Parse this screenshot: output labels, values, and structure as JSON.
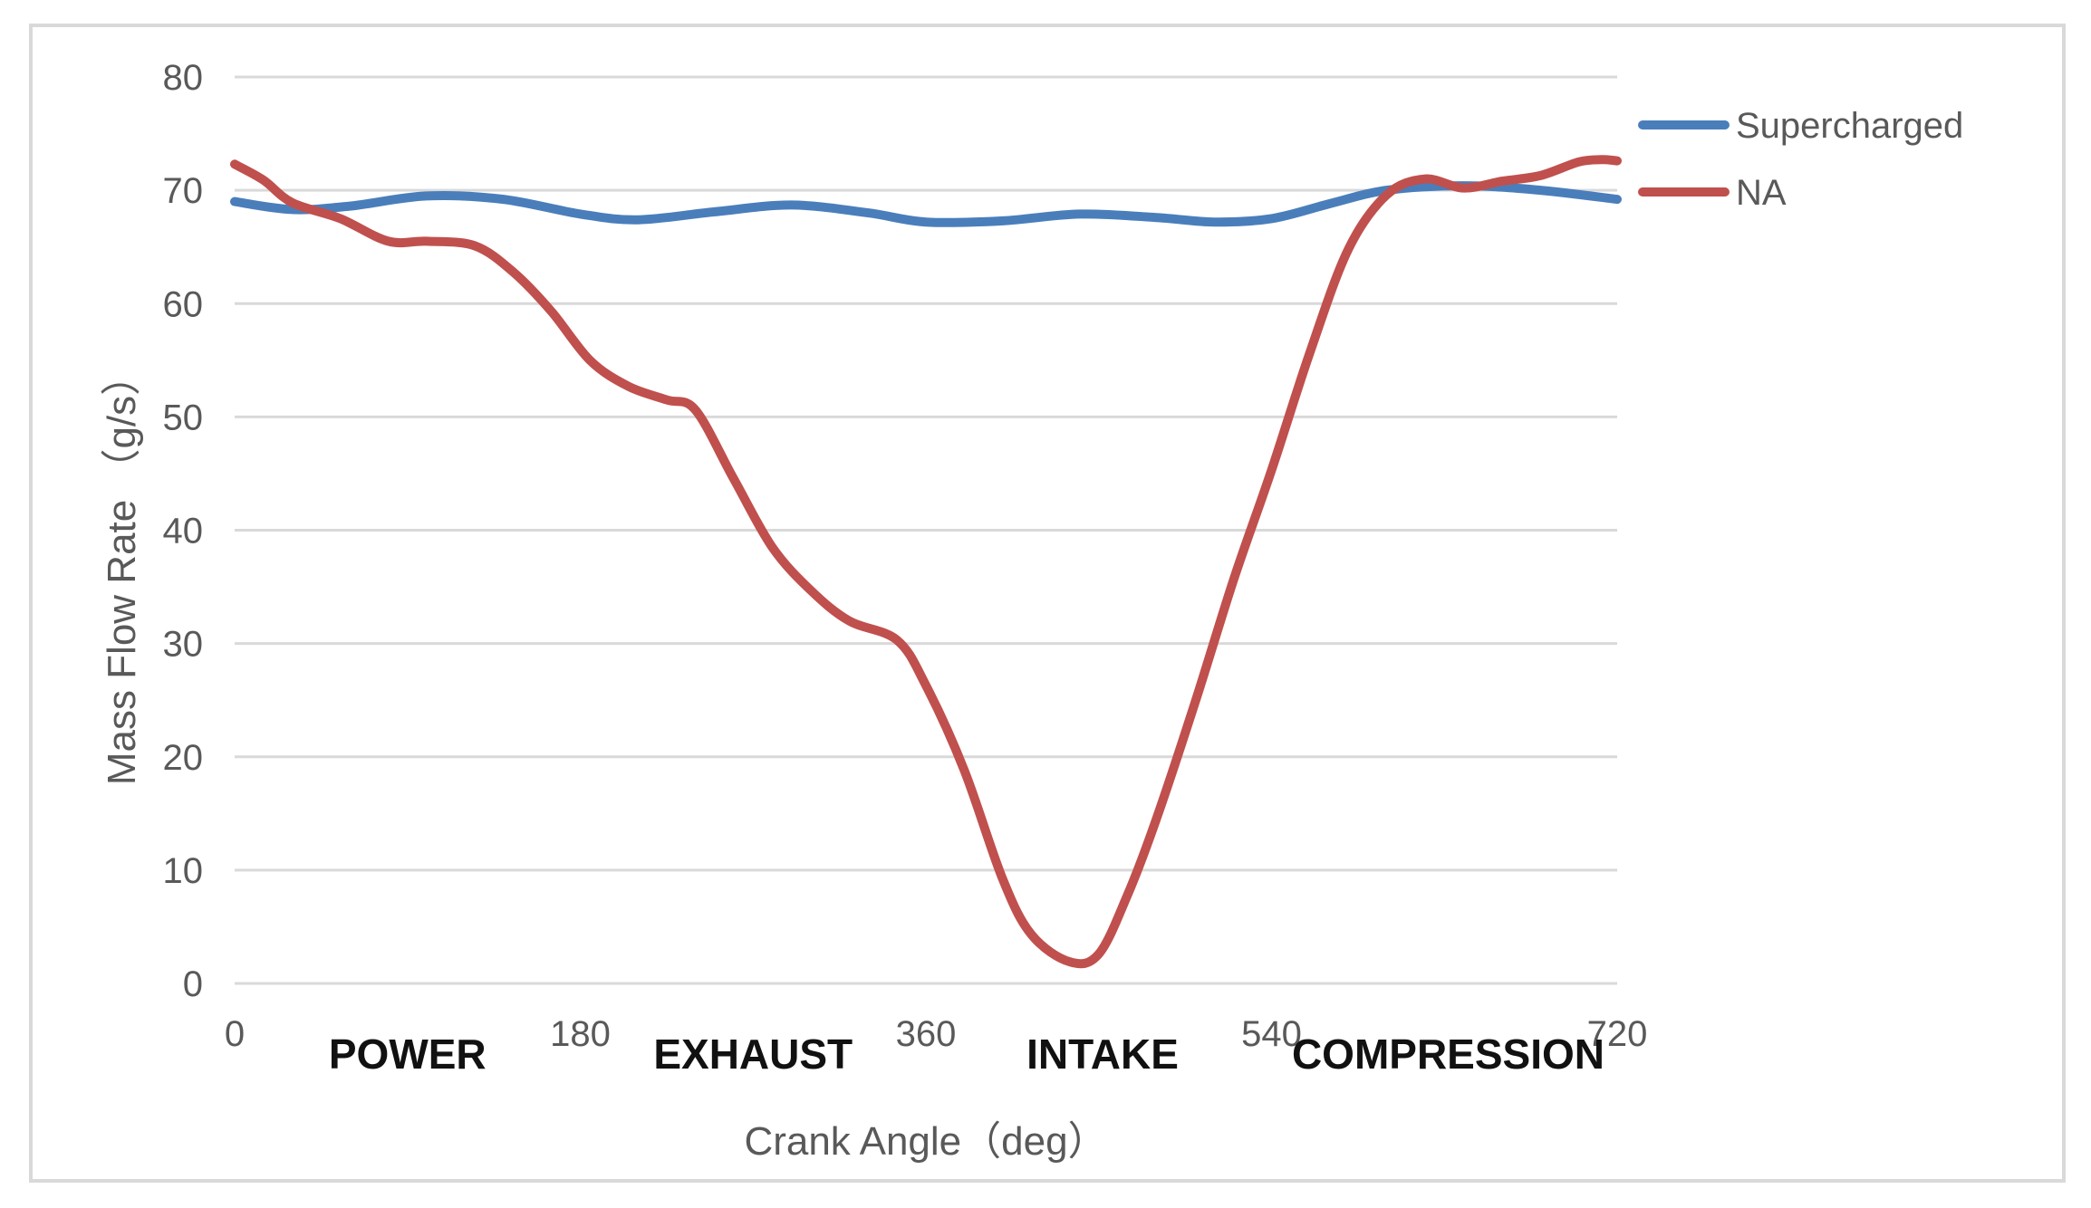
{
  "chart_data": {
    "type": "line",
    "title": "",
    "xlabel": "Crank Angle（deg）",
    "ylabel": "Mass Flow Rate （g/s）",
    "xlim": [
      0,
      720
    ],
    "ylim": [
      0,
      80
    ],
    "x_ticks": [
      0,
      180,
      360,
      540,
      720
    ],
    "y_ticks": [
      0,
      10,
      20,
      30,
      40,
      50,
      60,
      70,
      80
    ],
    "grid": "horizontal",
    "legend_position": "right",
    "phase_labels": [
      "POWER",
      "EXHAUST",
      "INTAKE",
      "COMPRESSION"
    ],
    "phase_centers": [
      90,
      270,
      452,
      632
    ],
    "series": [
      {
        "name": "Supercharged",
        "color": "#4a7ebb",
        "x": [
          0,
          30,
          60,
          100,
          140,
          180,
          210,
          250,
          290,
          330,
          360,
          400,
          440,
          480,
          510,
          540,
          570,
          600,
          640,
          680,
          720
        ],
        "y": [
          69.0,
          68.3,
          68.6,
          69.5,
          69.2,
          67.9,
          67.4,
          68.1,
          68.7,
          68.0,
          67.2,
          67.3,
          67.9,
          67.6,
          67.2,
          67.5,
          68.8,
          70.0,
          70.4,
          70.0,
          69.2
        ]
      },
      {
        "name": "NA",
        "color": "#c0504d",
        "x": [
          0,
          15,
          30,
          55,
          80,
          100,
          125,
          145,
          165,
          185,
          205,
          225,
          240,
          260,
          280,
          300,
          320,
          345,
          360,
          380,
          400,
          415,
          435,
          450,
          465,
          480,
          500,
          520,
          540,
          560,
          580,
          600,
          620,
          640,
          660,
          680,
          700,
          712,
          720
        ],
        "y": [
          72.3,
          70.9,
          68.9,
          67.5,
          65.5,
          65.5,
          65.1,
          62.8,
          59.3,
          55.0,
          52.7,
          51.5,
          50.6,
          44.5,
          38.5,
          34.7,
          32.0,
          30.3,
          26.3,
          18.8,
          9.2,
          4.3,
          1.9,
          2.6,
          7.8,
          14.5,
          24.7,
          35.5,
          45.3,
          55.7,
          64.8,
          69.6,
          71.0,
          70.2,
          70.8,
          71.3,
          72.5,
          72.7,
          72.6
        ]
      }
    ]
  }
}
